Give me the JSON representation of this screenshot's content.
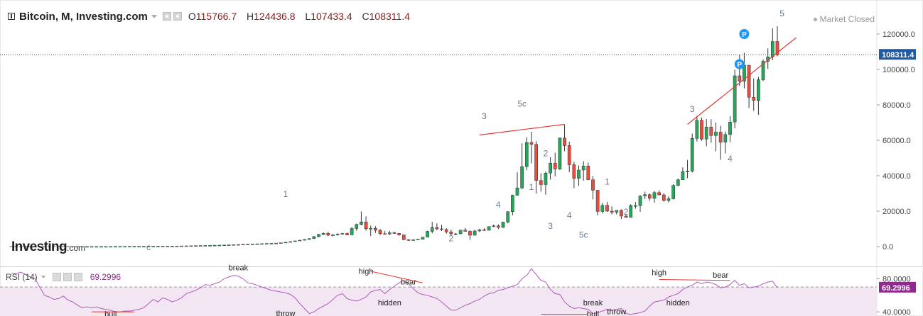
{
  "header": {
    "symbol": "Bitcoin, M, Investing.com",
    "open_label": "O",
    "open": "115766.7",
    "high_label": "H",
    "high": "124436.8",
    "low_label": "L",
    "low": "107433.4",
    "close_label": "C",
    "close": "108311.4"
  },
  "status": "Market Closed",
  "watermark": {
    "brand": "Investing",
    "domain": ".com"
  },
  "rsi_header": {
    "label": "RSI (14)",
    "value": "69.2996"
  },
  "colors": {
    "up": "#26a65b",
    "down": "#e74c3c",
    "rsi_line": "#b05ab8",
    "rsi_fill": "#f3e6f3",
    "annotation_line": "#e53935",
    "price_tag": "#1e5aa8",
    "rsi_tag": "#8e2a8e",
    "pivot_badge": "#2196f3"
  },
  "chart_data": [
    {
      "type": "candlestick",
      "title": "Bitcoin, M, Investing.com",
      "interval": "monthly",
      "ylim": [
        -8000,
        136000
      ],
      "yticks": [
        "120000.0",
        "100000.0",
        "80000.0",
        "60000.0",
        "40000.0",
        "20000.0",
        "0.0"
      ],
      "ytick_values": [
        120000,
        100000,
        80000,
        60000,
        40000,
        20000,
        0
      ],
      "last_price_label": "108311.4",
      "last_price": 108311.4,
      "grid": false,
      "candles_ohlc": [
        [
          10,
          10,
          10,
          10
        ],
        [
          10,
          10,
          10,
          10
        ],
        [
          10,
          10,
          10,
          10
        ],
        [
          10,
          10,
          10,
          10
        ],
        [
          10,
          10,
          10,
          10
        ],
        [
          10,
          10,
          10,
          10
        ],
        [
          10,
          10,
          10,
          10
        ],
        [
          10,
          10,
          10,
          10
        ],
        [
          10,
          10,
          10,
          10
        ],
        [
          10,
          10,
          10,
          10
        ],
        [
          10,
          10,
          10,
          10
        ],
        [
          10,
          10,
          10,
          10
        ],
        [
          10,
          10,
          10,
          10
        ],
        [
          10,
          10,
          10,
          10
        ],
        [
          10,
          10,
          10,
          10
        ],
        [
          10,
          10,
          10,
          10
        ],
        [
          20,
          30,
          15,
          25
        ],
        [
          25,
          35,
          20,
          30
        ],
        [
          30,
          40,
          25,
          35
        ],
        [
          35,
          45,
          30,
          40
        ],
        [
          40,
          50,
          35,
          45
        ],
        [
          45,
          60,
          40,
          55
        ],
        [
          55,
          70,
          50,
          65
        ],
        [
          65,
          80,
          60,
          75
        ],
        [
          75,
          90,
          70,
          85
        ],
        [
          85,
          100,
          80,
          95
        ],
        [
          95,
          110,
          90,
          105
        ],
        [
          105,
          130,
          100,
          125
        ],
        [
          125,
          140,
          110,
          130
        ],
        [
          130,
          150,
          120,
          145
        ],
        [
          145,
          170,
          130,
          160
        ],
        [
          160,
          190,
          150,
          180
        ],
        [
          180,
          220,
          170,
          200
        ],
        [
          200,
          240,
          190,
          230
        ],
        [
          230,
          280,
          220,
          270
        ],
        [
          270,
          330,
          250,
          320
        ],
        [
          320,
          380,
          300,
          360
        ],
        [
          360,
          420,
          340,
          400
        ],
        [
          400,
          480,
          380,
          450
        ],
        [
          450,
          550,
          430,
          520
        ],
        [
          520,
          600,
          500,
          580
        ],
        [
          580,
          640,
          560,
          620
        ],
        [
          620,
          700,
          600,
          680
        ],
        [
          680,
          760,
          650,
          740
        ],
        [
          740,
          830,
          720,
          800
        ],
        [
          800,
          900,
          780,
          880
        ],
        [
          880,
          990,
          850,
          960
        ],
        [
          960,
          1100,
          930,
          1070
        ],
        [
          1070,
          1200,
          1040,
          1170
        ],
        [
          1170,
          1300,
          1130,
          1280
        ],
        [
          1280,
          1400,
          1240,
          1370
        ],
        [
          1370,
          1500,
          1320,
          1460
        ],
        [
          1460,
          1600,
          1410,
          1560
        ],
        [
          1560,
          1700,
          1500,
          1640
        ],
        [
          1640,
          1800,
          1580,
          1760
        ],
        [
          1760,
          1900,
          1700,
          1840
        ],
        [
          1840,
          2000,
          1780,
          1950
        ],
        [
          1950,
          2200,
          1900,
          2150
        ],
        [
          2150,
          2500,
          2100,
          2450
        ],
        [
          2450,
          2900,
          2350,
          2800
        ],
        [
          2800,
          3300,
          2700,
          3200
        ],
        [
          3200,
          3800,
          3100,
          3600
        ],
        [
          3600,
          4200,
          3400,
          4000
        ],
        [
          4000,
          4700,
          3800,
          4500
        ],
        [
          4500,
          6000,
          4300,
          5600
        ],
        [
          5600,
          7200,
          5300,
          6900
        ],
        [
          6900,
          8000,
          6500,
          7500
        ],
        [
          7500,
          8300,
          6000,
          6400
        ],
        [
          6400,
          7000,
          5800,
          6600
        ],
        [
          6600,
          7500,
          6200,
          7000
        ],
        [
          7000,
          7800,
          6800,
          7400
        ],
        [
          7400,
          7900,
          6400,
          6600
        ],
        [
          6600,
          11000,
          6400,
          10200
        ],
        [
          10200,
          13000,
          9000,
          12500
        ],
        [
          12500,
          19800,
          12000,
          13900
        ],
        [
          13900,
          17000,
          9000,
          10100
        ],
        [
          10100,
          11800,
          6000,
          10300
        ],
        [
          10300,
          11500,
          7700,
          9200
        ],
        [
          9200,
          9900,
          6500,
          7300
        ],
        [
          7300,
          8800,
          6700,
          7100
        ],
        [
          7100,
          8900,
          6500,
          7800
        ],
        [
          7800,
          8400,
          7200,
          7500
        ],
        [
          7500,
          7700,
          6100,
          6600
        ],
        [
          6600,
          6800,
          3600,
          3900
        ],
        [
          3900,
          4200,
          3200,
          3700
        ],
        [
          3700,
          4100,
          3400,
          3800
        ],
        [
          3800,
          4200,
          3700,
          4100
        ],
        [
          4100,
          5400,
          4100,
          5300
        ],
        [
          5300,
          8900,
          5200,
          8600
        ],
        [
          8600,
          13900,
          7500,
          10800
        ],
        [
          10800,
          13100,
          9200,
          10000
        ],
        [
          10000,
          12300,
          8800,
          9600
        ],
        [
          9600,
          10400,
          7300,
          8300
        ],
        [
          8300,
          9500,
          6500,
          7200
        ],
        [
          7200,
          7600,
          6500,
          7200
        ],
        [
          7200,
          9400,
          6900,
          9300
        ],
        [
          9300,
          10500,
          8400,
          8600
        ],
        [
          8600,
          9200,
          3800,
          6400
        ],
        [
          6400,
          9500,
          6200,
          8800
        ],
        [
          8800,
          10000,
          8200,
          9500
        ],
        [
          9500,
          10400,
          8900,
          9200
        ],
        [
          9200,
          11400,
          9100,
          11300
        ],
        [
          11300,
          12400,
          10900,
          11700
        ],
        [
          11700,
          12500,
          9900,
          10800
        ],
        [
          10800,
          14000,
          10500,
          13800
        ],
        [
          13800,
          19900,
          13200,
          19700
        ],
        [
          19700,
          29300,
          17600,
          29000
        ],
        [
          29000,
          41900,
          28700,
          33100
        ],
        [
          33100,
          58300,
          32300,
          45100
        ],
        [
          45100,
          61700,
          43100,
          58800
        ],
        [
          58800,
          64800,
          47000,
          57700
        ],
        [
          57700,
          59500,
          30000,
          37300
        ],
        [
          37300,
          41300,
          31000,
          35000
        ],
        [
          35000,
          42300,
          29300,
          41500
        ],
        [
          41500,
          50500,
          37800,
          47100
        ],
        [
          47100,
          53000,
          39600,
          43800
        ],
        [
          43800,
          61500,
          43300,
          61300
        ],
        [
          61300,
          69000,
          53800,
          57000
        ],
        [
          57000,
          59200,
          42000,
          46200
        ],
        [
          46200,
          47900,
          33000,
          38500
        ],
        [
          38500,
          45800,
          34300,
          43200
        ],
        [
          43200,
          48200,
          37200,
          45500
        ],
        [
          45500,
          47400,
          37600,
          37700
        ],
        [
          37700,
          39800,
          26700,
          31800
        ],
        [
          31800,
          31900,
          17600,
          19800
        ],
        [
          19800,
          24600,
          18800,
          23300
        ],
        [
          23300,
          25200,
          19600,
          20000
        ],
        [
          20000,
          22700,
          18200,
          19400
        ],
        [
          19400,
          20400,
          18200,
          20500
        ],
        [
          20500,
          21000,
          15600,
          17200
        ],
        [
          17200,
          18000,
          16300,
          16500
        ],
        [
          16500,
          23900,
          16500,
          23100
        ],
        [
          23100,
          25200,
          21400,
          23100
        ],
        [
          23100,
          29000,
          19600,
          28500
        ],
        [
          28500,
          31000,
          26900,
          29300
        ],
        [
          29300,
          30000,
          25800,
          27200
        ],
        [
          27200,
          31400,
          24800,
          30500
        ],
        [
          30500,
          31800,
          28900,
          29200
        ],
        [
          29200,
          30200,
          25400,
          26000
        ],
        [
          26000,
          28500,
          24900,
          27000
        ],
        [
          27000,
          35200,
          26600,
          34500
        ],
        [
          34500,
          38400,
          34100,
          37700
        ],
        [
          37700,
          44700,
          37600,
          42300
        ],
        [
          42300,
          48900,
          38600,
          42600
        ],
        [
          42600,
          63800,
          41800,
          61100
        ],
        [
          61100,
          73800,
          59300,
          71300
        ],
        [
          71300,
          72800,
          59700,
          60700
        ],
        [
          60700,
          71900,
          56600,
          67500
        ],
        [
          67500,
          71900,
          58600,
          62700
        ],
        [
          62700,
          70000,
          53800,
          64600
        ],
        [
          64600,
          68200,
          49000,
          58900
        ],
        [
          58900,
          65000,
          52600,
          63300
        ],
        [
          63300,
          73600,
          58900,
          70300
        ],
        [
          70300,
          99800,
          66800,
          96400
        ],
        [
          96400,
          108300,
          90700,
          93400
        ],
        [
          93400,
          109400,
          89300,
          102400
        ],
        [
          102400,
          102500,
          78200,
          84300
        ],
        [
          84300,
          95000,
          76600,
          82500
        ],
        [
          82500,
          95800,
          74400,
          94200
        ],
        [
          94200,
          105700,
          93300,
          104600
        ],
        [
          104600,
          111900,
          100400,
          107100
        ],
        [
          107100,
          123200,
          105200,
          115800
        ],
        [
          115800,
          124400,
          107400,
          108300
        ]
      ],
      "wave_labels": [
        "c",
        "1",
        "2",
        "3",
        "4",
        "5c",
        "1",
        "2",
        "3",
        "4",
        "5c",
        "1",
        "2",
        "3",
        "4",
        "5"
      ],
      "pivot_markers": [
        "P",
        "P"
      ],
      "subchart": {
        "type": "line",
        "title": "RSI (14)",
        "last_value": 69.2996,
        "last_value_label": "69.2996",
        "ylim": [
          35,
          94
        ],
        "yticks": [
          "80.0000",
          "40.0000"
        ],
        "ytick_values": [
          80,
          40
        ],
        "reference_line": 70,
        "values": [
          87,
          86,
          88,
          85,
          82,
          80,
          70,
          60,
          58,
          55,
          56,
          59,
          54,
          52,
          48,
          45,
          46,
          45,
          46,
          44,
          43,
          42,
          40,
          40,
          41,
          41,
          42,
          43,
          45,
          50,
          55,
          52,
          57,
          55,
          52,
          54,
          57,
          62,
          64,
          66,
          69,
          73,
          72,
          74,
          76,
          80,
          82,
          84,
          83,
          80,
          75,
          74,
          72,
          70,
          68,
          66,
          65,
          64,
          63,
          61,
          57,
          50,
          44,
          38,
          40,
          44,
          47,
          50,
          55,
          60,
          62,
          56,
          54,
          53,
          55,
          58,
          64,
          66,
          67,
          62,
          67,
          71,
          75,
          78,
          74,
          68,
          63,
          61,
          60,
          58,
          56,
          52,
          47,
          42,
          42,
          45,
          48,
          50,
          53,
          55,
          59,
          62,
          63,
          66,
          67,
          69,
          71,
          73,
          80,
          84,
          92,
          85,
          78,
          76,
          67,
          62,
          61,
          52,
          47,
          44,
          45,
          44,
          43,
          38,
          39,
          41,
          43,
          42,
          43,
          44,
          38,
          37,
          38,
          39,
          41,
          47,
          52,
          53,
          54,
          58,
          60,
          62,
          67,
          70,
          72,
          76,
          74,
          76,
          75,
          73,
          69,
          70,
          73,
          78,
          72,
          74,
          69,
          70,
          71,
          74,
          76,
          77,
          69
        ],
        "annotations": [
          "break",
          "bull",
          "throw",
          "high",
          "hidden",
          "bear",
          "break",
          "bull",
          "throw",
          "high",
          "hidden",
          "bear"
        ]
      }
    }
  ]
}
